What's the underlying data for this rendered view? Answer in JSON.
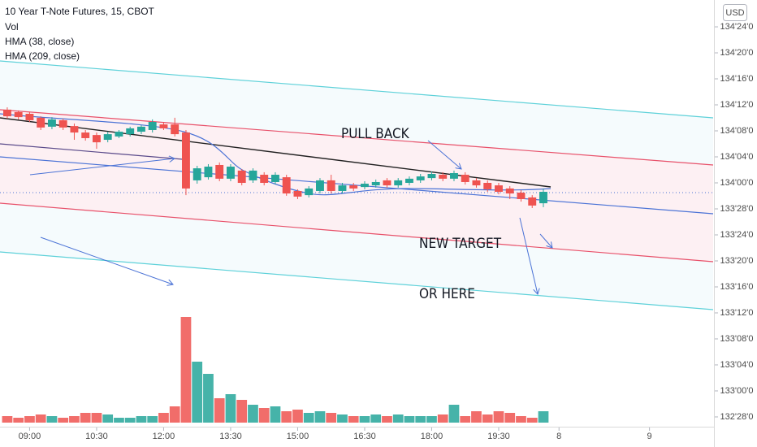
{
  "chart_data": {
    "type": "candlestick",
    "title": "10 Year T-Note Futures, 15, CBOT",
    "legend": [
      "Vol",
      "HMA (38, close)",
      "HMA (209, close)"
    ],
    "currency": "USD",
    "annotations": [
      "PULL BACK",
      "NEW TARGET",
      "OR HERE"
    ],
    "up_color": "#26a69a",
    "down_color": "#ef5350",
    "open": [
      134.352,
      134.34,
      134.332,
      134.313,
      134.27,
      134.301,
      134.273,
      134.242,
      134.23,
      134.207,
      134.223,
      134.234,
      134.246,
      134.254,
      134.281,
      134.281,
      134.242,
      134.012,
      134.027,
      134.086,
      134.02,
      134.059,
      134.012,
      134.039,
      134.004,
      134.027,
      133.961,
      133.941,
      133.961,
      134.012,
      133.961,
      133.988,
      133.98,
      133.988,
      134.012,
      133.988,
      134.0,
      134.012,
      134.023,
      134.039,
      134.02,
      134.039,
      134.012,
      134.0,
      133.988,
      133.973,
      133.953,
      133.93,
      133.902
    ],
    "high": [
      134.363,
      134.348,
      134.34,
      134.32,
      134.316,
      134.309,
      134.285,
      134.254,
      134.242,
      134.246,
      134.254,
      134.27,
      134.277,
      134.305,
      134.293,
      134.313,
      134.254,
      134.082,
      134.09,
      134.098,
      134.09,
      134.066,
      134.07,
      134.051,
      134.051,
      134.039,
      133.969,
      133.984,
      134.023,
      134.039,
      134.0,
      134.0,
      134.008,
      134.016,
      134.023,
      134.023,
      134.031,
      134.043,
      134.055,
      134.051,
      134.059,
      134.051,
      134.023,
      134.012,
      134.0,
      133.984,
      133.965,
      133.941,
      133.973
    ],
    "low": [
      134.309,
      134.305,
      134.293,
      134.254,
      134.258,
      134.254,
      134.207,
      134.203,
      134.164,
      134.195,
      134.215,
      134.223,
      134.234,
      134.242,
      134.254,
      134.223,
      133.941,
      133.996,
      134.016,
      134.008,
      134.008,
      133.988,
      134.0,
      133.988,
      133.992,
      133.938,
      133.922,
      133.93,
      133.949,
      133.949,
      133.949,
      133.961,
      133.969,
      133.977,
      133.977,
      133.977,
      133.988,
      134.0,
      134.012,
      134.008,
      134.008,
      133.992,
      133.977,
      133.957,
      133.945,
      133.922,
      133.91,
      133.879,
      133.883
    ],
    "close": [
      134.32,
      134.316,
      134.301,
      134.266,
      134.305,
      134.266,
      134.242,
      134.215,
      134.195,
      134.234,
      134.246,
      134.262,
      134.27,
      134.293,
      134.262,
      134.234,
      133.973,
      134.07,
      134.078,
      134.02,
      134.078,
      134.0,
      134.059,
      134.0,
      134.039,
      133.949,
      133.934,
      133.973,
      134.012,
      133.961,
      133.988,
      133.973,
      133.996,
      134.004,
      133.988,
      134.012,
      134.02,
      134.031,
      134.043,
      134.02,
      134.047,
      134.004,
      133.988,
      133.969,
      133.957,
      133.949,
      133.922,
      133.891,
      133.957
    ],
    "volume": [
      8,
      6,
      8,
      10,
      8,
      6,
      8,
      12,
      12,
      10,
      6,
      6,
      8,
      8,
      12,
      20,
      130,
      75,
      60,
      30,
      35,
      28,
      22,
      18,
      20,
      14,
      16,
      12,
      14,
      12,
      10,
      8,
      8,
      10,
      8,
      10,
      8,
      8,
      8,
      10,
      22,
      8,
      14,
      10,
      14,
      12,
      8,
      6,
      14
    ],
    "vlim": [
      0,
      400
    ],
    "xlim": [
      -0.65,
      63.2
    ],
    "xticks": [
      {
        "value": 2,
        "label": "09:00"
      },
      {
        "value": 8,
        "label": "10:30"
      },
      {
        "value": 14,
        "label": "12:00"
      },
      {
        "value": 20,
        "label": "13:30"
      },
      {
        "value": 26,
        "label": "15:00"
      },
      {
        "value": 32,
        "label": "16:30"
      },
      {
        "value": 38,
        "label": "18:00"
      },
      {
        "value": 44,
        "label": "19:30"
      },
      {
        "value": 49.4,
        "label": "8"
      },
      {
        "value": 57.5,
        "label": "9"
      }
    ],
    "ylim": [
      132.828,
      134.879
    ],
    "yticks": [
      {
        "value": 134.75,
        "label": "134'24'0"
      },
      {
        "value": 134.625,
        "label": "134'20'0"
      },
      {
        "value": 134.5,
        "label": "134'16'0"
      },
      {
        "value": 134.375,
        "label": "134'12'0"
      },
      {
        "value": 134.25,
        "label": "134'08'0"
      },
      {
        "value": 134.125,
        "label": "134'04'0"
      },
      {
        "value": 134,
        "label": "134'00'0"
      },
      {
        "value": 133.875,
        "label": "133'28'0"
      },
      {
        "value": 133.75,
        "label": "133'24'0"
      },
      {
        "value": 133.625,
        "label": "133'20'0"
      },
      {
        "value": 133.5,
        "label": "133'16'0"
      },
      {
        "value": 133.375,
        "label": "133'12'0"
      },
      {
        "value": 133.25,
        "label": "133'08'0"
      },
      {
        "value": 133.125,
        "label": "133'04'0"
      },
      {
        "value": 133,
        "label": "133'00'0"
      },
      {
        "value": 132.875,
        "label": "132'28'0"
      }
    ]
  }
}
